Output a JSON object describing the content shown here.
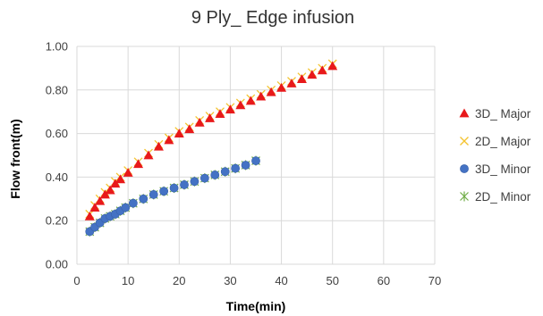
{
  "chart_data": {
    "type": "scatter",
    "title": "9 Ply_ Edge infusion",
    "xlabel": "Time(min)",
    "ylabel": "Flow front(m)",
    "xlim": [
      0,
      70
    ],
    "ylim": [
      0,
      1.0
    ],
    "x_ticks": [
      "0",
      "10",
      "20",
      "30",
      "40",
      "50",
      "60",
      "70"
    ],
    "y_ticks": [
      "0.00",
      "0.20",
      "0.40",
      "0.60",
      "0.80",
      "1.00"
    ],
    "grid": true,
    "legend_position": "right",
    "series": [
      {
        "name": "3D_ Major",
        "marker": "triangle",
        "color": "#e8191b",
        "x": [
          2.5,
          3.5,
          4.5,
          5.5,
          6.5,
          7.5,
          8.5,
          10,
          12,
          14,
          16,
          18,
          20,
          22,
          24,
          26,
          28,
          30,
          32,
          34,
          36,
          38,
          40,
          42,
          44,
          46,
          48,
          50
        ],
        "y": [
          0.22,
          0.26,
          0.29,
          0.32,
          0.34,
          0.37,
          0.39,
          0.42,
          0.46,
          0.5,
          0.54,
          0.57,
          0.6,
          0.62,
          0.65,
          0.67,
          0.69,
          0.71,
          0.73,
          0.75,
          0.77,
          0.79,
          0.81,
          0.83,
          0.85,
          0.87,
          0.89,
          0.91
        ]
      },
      {
        "name": "2D_ Major",
        "marker": "x",
        "color": "#f4c430",
        "x": [
          2.5,
          3.5,
          4.5,
          5.5,
          6.5,
          7.5,
          8.5,
          10,
          12,
          14,
          16,
          18,
          20,
          22,
          24,
          26,
          28,
          30,
          32,
          34,
          36,
          38,
          40,
          42,
          44,
          46,
          48,
          50
        ],
        "y": [
          0.23,
          0.27,
          0.3,
          0.33,
          0.35,
          0.38,
          0.4,
          0.43,
          0.47,
          0.51,
          0.55,
          0.58,
          0.61,
          0.63,
          0.66,
          0.68,
          0.7,
          0.72,
          0.74,
          0.76,
          0.78,
          0.8,
          0.82,
          0.84,
          0.86,
          0.88,
          0.9,
          0.92
        ]
      },
      {
        "name": "3D_ Minor",
        "marker": "circle",
        "color": "#4472c4",
        "x": [
          2.5,
          3.5,
          4.5,
          5.5,
          6.5,
          7.5,
          8.5,
          9.5,
          11,
          13,
          15,
          17,
          19,
          21,
          23,
          25,
          27,
          29,
          31,
          33,
          35
        ],
        "y": [
          0.15,
          0.17,
          0.19,
          0.21,
          0.22,
          0.23,
          0.245,
          0.26,
          0.28,
          0.3,
          0.32,
          0.335,
          0.35,
          0.365,
          0.38,
          0.395,
          0.41,
          0.425,
          0.44,
          0.455,
          0.475
        ]
      },
      {
        "name": "2D_ Minor",
        "marker": "star",
        "color": "#70ad47",
        "x": [
          2.5,
          3.5,
          4.5,
          5.5,
          6.5,
          7.5,
          8.5,
          9.5,
          11,
          13,
          15,
          17,
          19,
          21,
          23,
          25,
          27,
          29,
          31,
          33,
          35
        ],
        "y": [
          0.15,
          0.17,
          0.19,
          0.21,
          0.22,
          0.23,
          0.245,
          0.26,
          0.28,
          0.3,
          0.32,
          0.335,
          0.35,
          0.365,
          0.38,
          0.395,
          0.41,
          0.425,
          0.44,
          0.455,
          0.475
        ]
      }
    ]
  }
}
